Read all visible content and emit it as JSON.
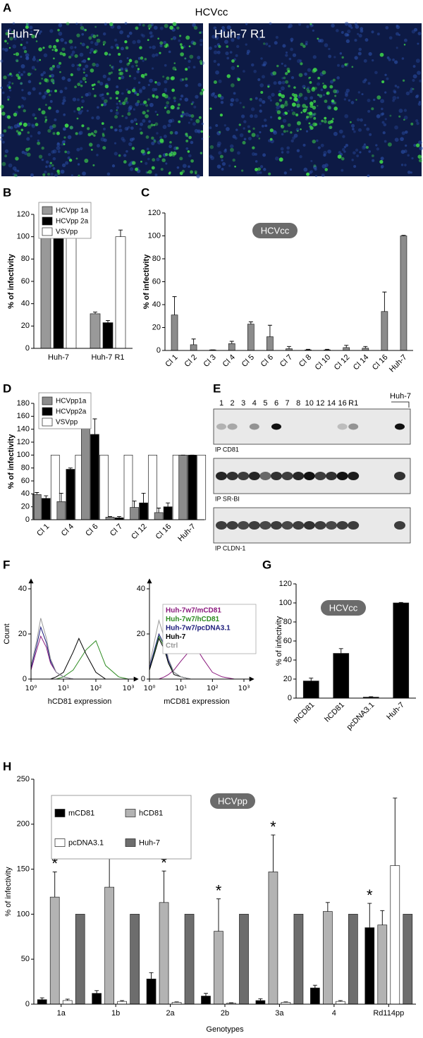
{
  "panel_a": {
    "panel": "A",
    "title": "HCVcc",
    "images": [
      "Huh-7",
      "Huh-7 R1"
    ]
  },
  "panel_e": {
    "panel": "E",
    "lanes": [
      "1",
      "2",
      "3",
      "4",
      "5",
      "6",
      "7",
      "8",
      "10",
      "12",
      "14",
      "16",
      "R1"
    ],
    "control": "Huh-7",
    "blots": [
      "IP CD81",
      "IP SR-BI",
      "IP CLDN-1"
    ]
  },
  "chart_data": [
    {
      "type": "bar",
      "panel": "B",
      "ylabel": "% of infectivity",
      "categories": [
        "Huh-7",
        "Huh-7 R1"
      ],
      "series": [
        {
          "name": "HCVpp 1a",
          "color": "#999999",
          "values": [
            100,
            31
          ],
          "errors": [
            0.5,
            1.5
          ]
        },
        {
          "name": "HCVpp 2a",
          "color": "#000000",
          "values": [
            100,
            23
          ],
          "errors": [
            0.5,
            2
          ]
        },
        {
          "name": "VSVpp",
          "color": "#ffffff",
          "values": [
            100,
            100
          ],
          "errors": [
            0,
            6
          ]
        }
      ],
      "ylim": [
        0,
        120
      ],
      "yticks": [
        0,
        20,
        40,
        60,
        80,
        100,
        120
      ],
      "legend": "upper left"
    },
    {
      "type": "bar",
      "panel": "C",
      "ylabel": "% of infectivity",
      "annotation": "HCVcc",
      "categories": [
        "Cl 1",
        "Cl 2",
        "Cl 3",
        "Cl 4",
        "Cl 5",
        "Cl 6",
        "Cl 7",
        "Cl 8",
        "Cl 10",
        "Cl 12",
        "Cl 14",
        "Cl 16",
        "Huh-7"
      ],
      "values": [
        31,
        5,
        0.5,
        6,
        23,
        12,
        1.5,
        0.5,
        0.5,
        2.5,
        2,
        34,
        100
      ],
      "errors": [
        16,
        5,
        0,
        2,
        2,
        10,
        2,
        0.5,
        0.5,
        2,
        1.5,
        17,
        0.5
      ],
      "color": "#8c8c8c",
      "ylim": [
        0,
        120
      ],
      "yticks": [
        0,
        20,
        40,
        60,
        80,
        100,
        120
      ]
    },
    {
      "type": "bar",
      "panel": "D",
      "ylabel": "% of infectivity",
      "categories": [
        "Cl 1",
        "Cl 4",
        "Cl 6",
        "Cl 7",
        "Cl 12",
        "Cl 16",
        "Huh-7"
      ],
      "series": [
        {
          "name": "HCVpp1a",
          "color": "#8c8c8c",
          "values": [
            39,
            28,
            145,
            4,
            19,
            11,
            100
          ],
          "errors": [
            3,
            13,
            20,
            1,
            10,
            7,
            0
          ]
        },
        {
          "name": "HCVpp2a",
          "color": "#000000",
          "values": [
            33,
            78,
            132,
            3,
            26,
            20,
            100
          ],
          "errors": [
            4,
            2,
            24,
            2,
            15,
            6,
            0
          ]
        },
        {
          "name": "VSVpp",
          "color": "#ffffff",
          "values": [
            100,
            100,
            100,
            100,
            100,
            100,
            100
          ]
        }
      ],
      "ylim": [
        0,
        180
      ],
      "yticks": [
        0,
        20,
        40,
        60,
        80,
        100,
        120,
        140,
        160,
        180
      ],
      "legend": "upper left"
    },
    {
      "type": "density",
      "panel": "F",
      "ylabel": "Count",
      "xlabels": [
        "hCD81 expression",
        "mCD81 expression"
      ],
      "log_x": true,
      "xlim": [
        1,
        1000
      ],
      "xticks": [
        {
          "value": 1,
          "label": "10⁰"
        },
        {
          "value": 10,
          "label": "10¹"
        },
        {
          "value": 100,
          "label": "10²"
        },
        {
          "value": 1000,
          "label": "10³"
        }
      ],
      "ylim": [
        0,
        40
      ],
      "yticks": [
        0,
        20,
        40
      ],
      "x": [
        1,
        1.5,
        2,
        3,
        4,
        6,
        10,
        20,
        30,
        50,
        100,
        200,
        500,
        1000
      ],
      "series": [
        {
          "name": "Huh-7w7/mCD81",
          "color": "#8b1a7e",
          "values": [
            [
              4,
              13,
              19,
              14,
              7,
              3,
              1,
              0,
              0,
              0,
              0,
              0,
              0,
              0
            ],
            [
              0,
              0,
              0,
              1,
              2,
              4,
              8,
              13,
              14,
              9,
              3,
              1,
              0,
              0
            ]
          ]
        },
        {
          "name": "Huh-7w7/hCD81",
          "color": "#2e8b22",
          "values": [
            [
              0,
              0,
              0,
              0,
              0,
              0,
              1,
              4,
              8,
              13,
              17,
              6,
              1,
              0
            ],
            [
              4,
              13,
              19,
              14,
              7,
              3,
              1,
              0,
              0,
              0,
              0,
              0,
              0,
              0
            ]
          ]
        },
        {
          "name": "Huh-7w7/pcDNA3.1",
          "color": "#1a1a7a",
          "values": [
            [
              5,
              15,
              23,
              16,
              8,
              3,
              1,
              0,
              0,
              0,
              0,
              0,
              0,
              0
            ],
            [
              5,
              14,
              20,
              15,
              8,
              3,
              1,
              0,
              0,
              0,
              0,
              0,
              0,
              0
            ]
          ]
        },
        {
          "name": "Huh-7",
          "color": "#000000",
          "values": [
            [
              0,
              0,
              0,
              0,
              0,
              1,
              3,
              12,
              18,
              11,
              3,
              0,
              0,
              0
            ],
            [
              4,
              12,
              18,
              13,
              7,
              2,
              1,
              0,
              0,
              0,
              0,
              0,
              0,
              0
            ]
          ]
        },
        {
          "name": "Ctrl",
          "color": "#999999",
          "values": [
            [
              6,
              17,
              27,
              18,
              9,
              3,
              1,
              0,
              0,
              0,
              0,
              0,
              0,
              0
            ],
            [
              6,
              18,
              26,
              18,
              9,
              3,
              1,
              0,
              0,
              0,
              0,
              0,
              0,
              0
            ]
          ]
        }
      ],
      "legend": "upper right"
    },
    {
      "type": "bar",
      "panel": "G",
      "ylabel": "% of infectivity",
      "annotation": "HCVcc",
      "categories": [
        "mCD81",
        "hCD81",
        "pcDNA3.1",
        "Huh-7"
      ],
      "values": [
        18,
        47,
        1,
        100
      ],
      "errors": [
        3,
        5,
        0.5,
        0.5
      ],
      "color": "#000000",
      "ylim": [
        0,
        120
      ],
      "yticks": [
        0,
        20,
        40,
        60,
        80,
        100,
        120
      ]
    },
    {
      "type": "bar",
      "panel": "H",
      "ylabel": "% of infectivity",
      "xlabel": "Genotypes",
      "annotation": "HCVpp",
      "categories": [
        "1a",
        "1b",
        "2a",
        "2b",
        "3a",
        "4",
        "Rd114pp"
      ],
      "series": [
        {
          "name": "mCD81",
          "color": "#000000",
          "values": [
            5,
            12,
            28,
            9,
            4,
            18,
            85
          ],
          "errors": [
            2,
            3,
            7,
            3,
            2,
            3,
            27
          ],
          "markers": [
            null,
            null,
            null,
            null,
            null,
            null,
            "*"
          ]
        },
        {
          "name": "hCD81",
          "color": "#b3b3b3",
          "values": [
            119,
            130,
            113,
            81,
            147,
            103,
            88
          ],
          "errors": [
            28,
            36,
            35,
            36,
            41,
            10,
            16
          ],
          "markers": [
            "*",
            null,
            "*",
            "*",
            "*",
            null,
            null
          ]
        },
        {
          "name": "pcDNA3.1",
          "color": "#ffffff",
          "values": [
            4,
            3,
            2,
            1,
            2,
            3,
            154
          ],
          "errors": [
            1.5,
            1,
            0.5,
            0.5,
            0.5,
            1,
            75
          ]
        },
        {
          "name": "Huh-7",
          "color": "#6d6d6d",
          "values": [
            100,
            100,
            100,
            100,
            100,
            100,
            100
          ]
        }
      ],
      "ylim": [
        0,
        250
      ],
      "yticks": [
        0,
        50,
        100,
        150,
        200,
        250
      ],
      "legend": "upper left"
    }
  ]
}
